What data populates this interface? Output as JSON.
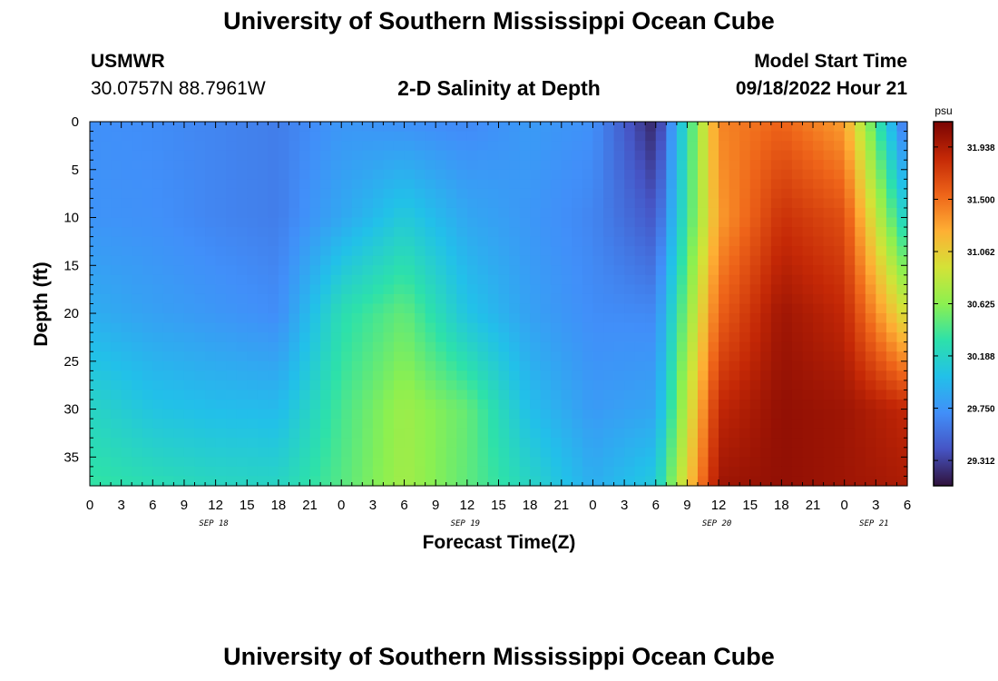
{
  "header": {
    "title": "University of Southern Mississippi Ocean Cube",
    "station": "USMWR",
    "coords": "30.0757N  88.7961W",
    "plot_title": "2-D Salinity at Depth",
    "model_label": "Model Start Time",
    "model_time": "09/18/2022 Hour 21",
    "footer_title": "University of Southern Mississippi Ocean Cube"
  },
  "chart_data": {
    "type": "heatmap",
    "title": "2-D Salinity at Depth",
    "xlabel": "Forecast Time(Z)",
    "ylabel": "Depth (ft)",
    "x_range_hours": [
      0,
      78
    ],
    "ylim": [
      0,
      38
    ],
    "y_reversed": true,
    "x_tick_labels": [
      "0",
      "3",
      "6",
      "9",
      "12",
      "15",
      "18",
      "21",
      "0",
      "3",
      "6",
      "9",
      "12",
      "15",
      "18",
      "21",
      "0",
      "3",
      "6",
      "9",
      "12",
      "15",
      "18",
      "21",
      "0",
      "3",
      "6"
    ],
    "day_labels": [
      "SEP 18",
      "SEP 19",
      "SEP 20",
      "SEP 21"
    ],
    "y_ticks": [
      0,
      5,
      10,
      15,
      20,
      25,
      30,
      35
    ],
    "colorbar": {
      "unit": "psu",
      "min": 29.1,
      "max": 32.15,
      "tick_labels": [
        "31.938",
        "31.500",
        "31.062",
        "30.625",
        "30.188",
        "29.750",
        "29.312"
      ],
      "tick_values": [
        31.938,
        31.5,
        31.062,
        30.625,
        30.188,
        29.75,
        29.312
      ]
    },
    "grid": false,
    "hours": [
      0,
      6,
      12,
      18,
      24,
      30,
      36,
      42,
      48,
      54,
      60,
      66,
      72,
      78
    ],
    "depths": [
      0,
      10,
      20,
      30,
      38
    ],
    "values": [
      [
        29.72,
        29.7,
        29.66,
        29.62,
        29.76,
        29.72,
        29.68,
        29.78,
        29.72,
        29.18,
        31.4,
        31.55,
        31.3,
        29.5
      ],
      [
        29.74,
        29.72,
        29.66,
        29.62,
        29.86,
        30.1,
        29.86,
        29.76,
        29.66,
        29.42,
        31.3,
        31.8,
        31.65,
        30.1
      ],
      [
        29.9,
        29.82,
        29.76,
        29.7,
        30.28,
        30.5,
        30.05,
        29.82,
        29.7,
        29.68,
        31.55,
        32.0,
        31.85,
        30.9
      ],
      [
        30.2,
        30.05,
        30.0,
        29.98,
        30.4,
        30.7,
        30.5,
        30.0,
        29.78,
        29.85,
        31.85,
        32.05,
        32.0,
        31.85
      ],
      [
        30.35,
        30.28,
        30.22,
        30.2,
        30.45,
        30.72,
        30.48,
        30.2,
        29.9,
        30.1,
        32.0,
        32.05,
        32.0,
        31.95
      ]
    ]
  }
}
